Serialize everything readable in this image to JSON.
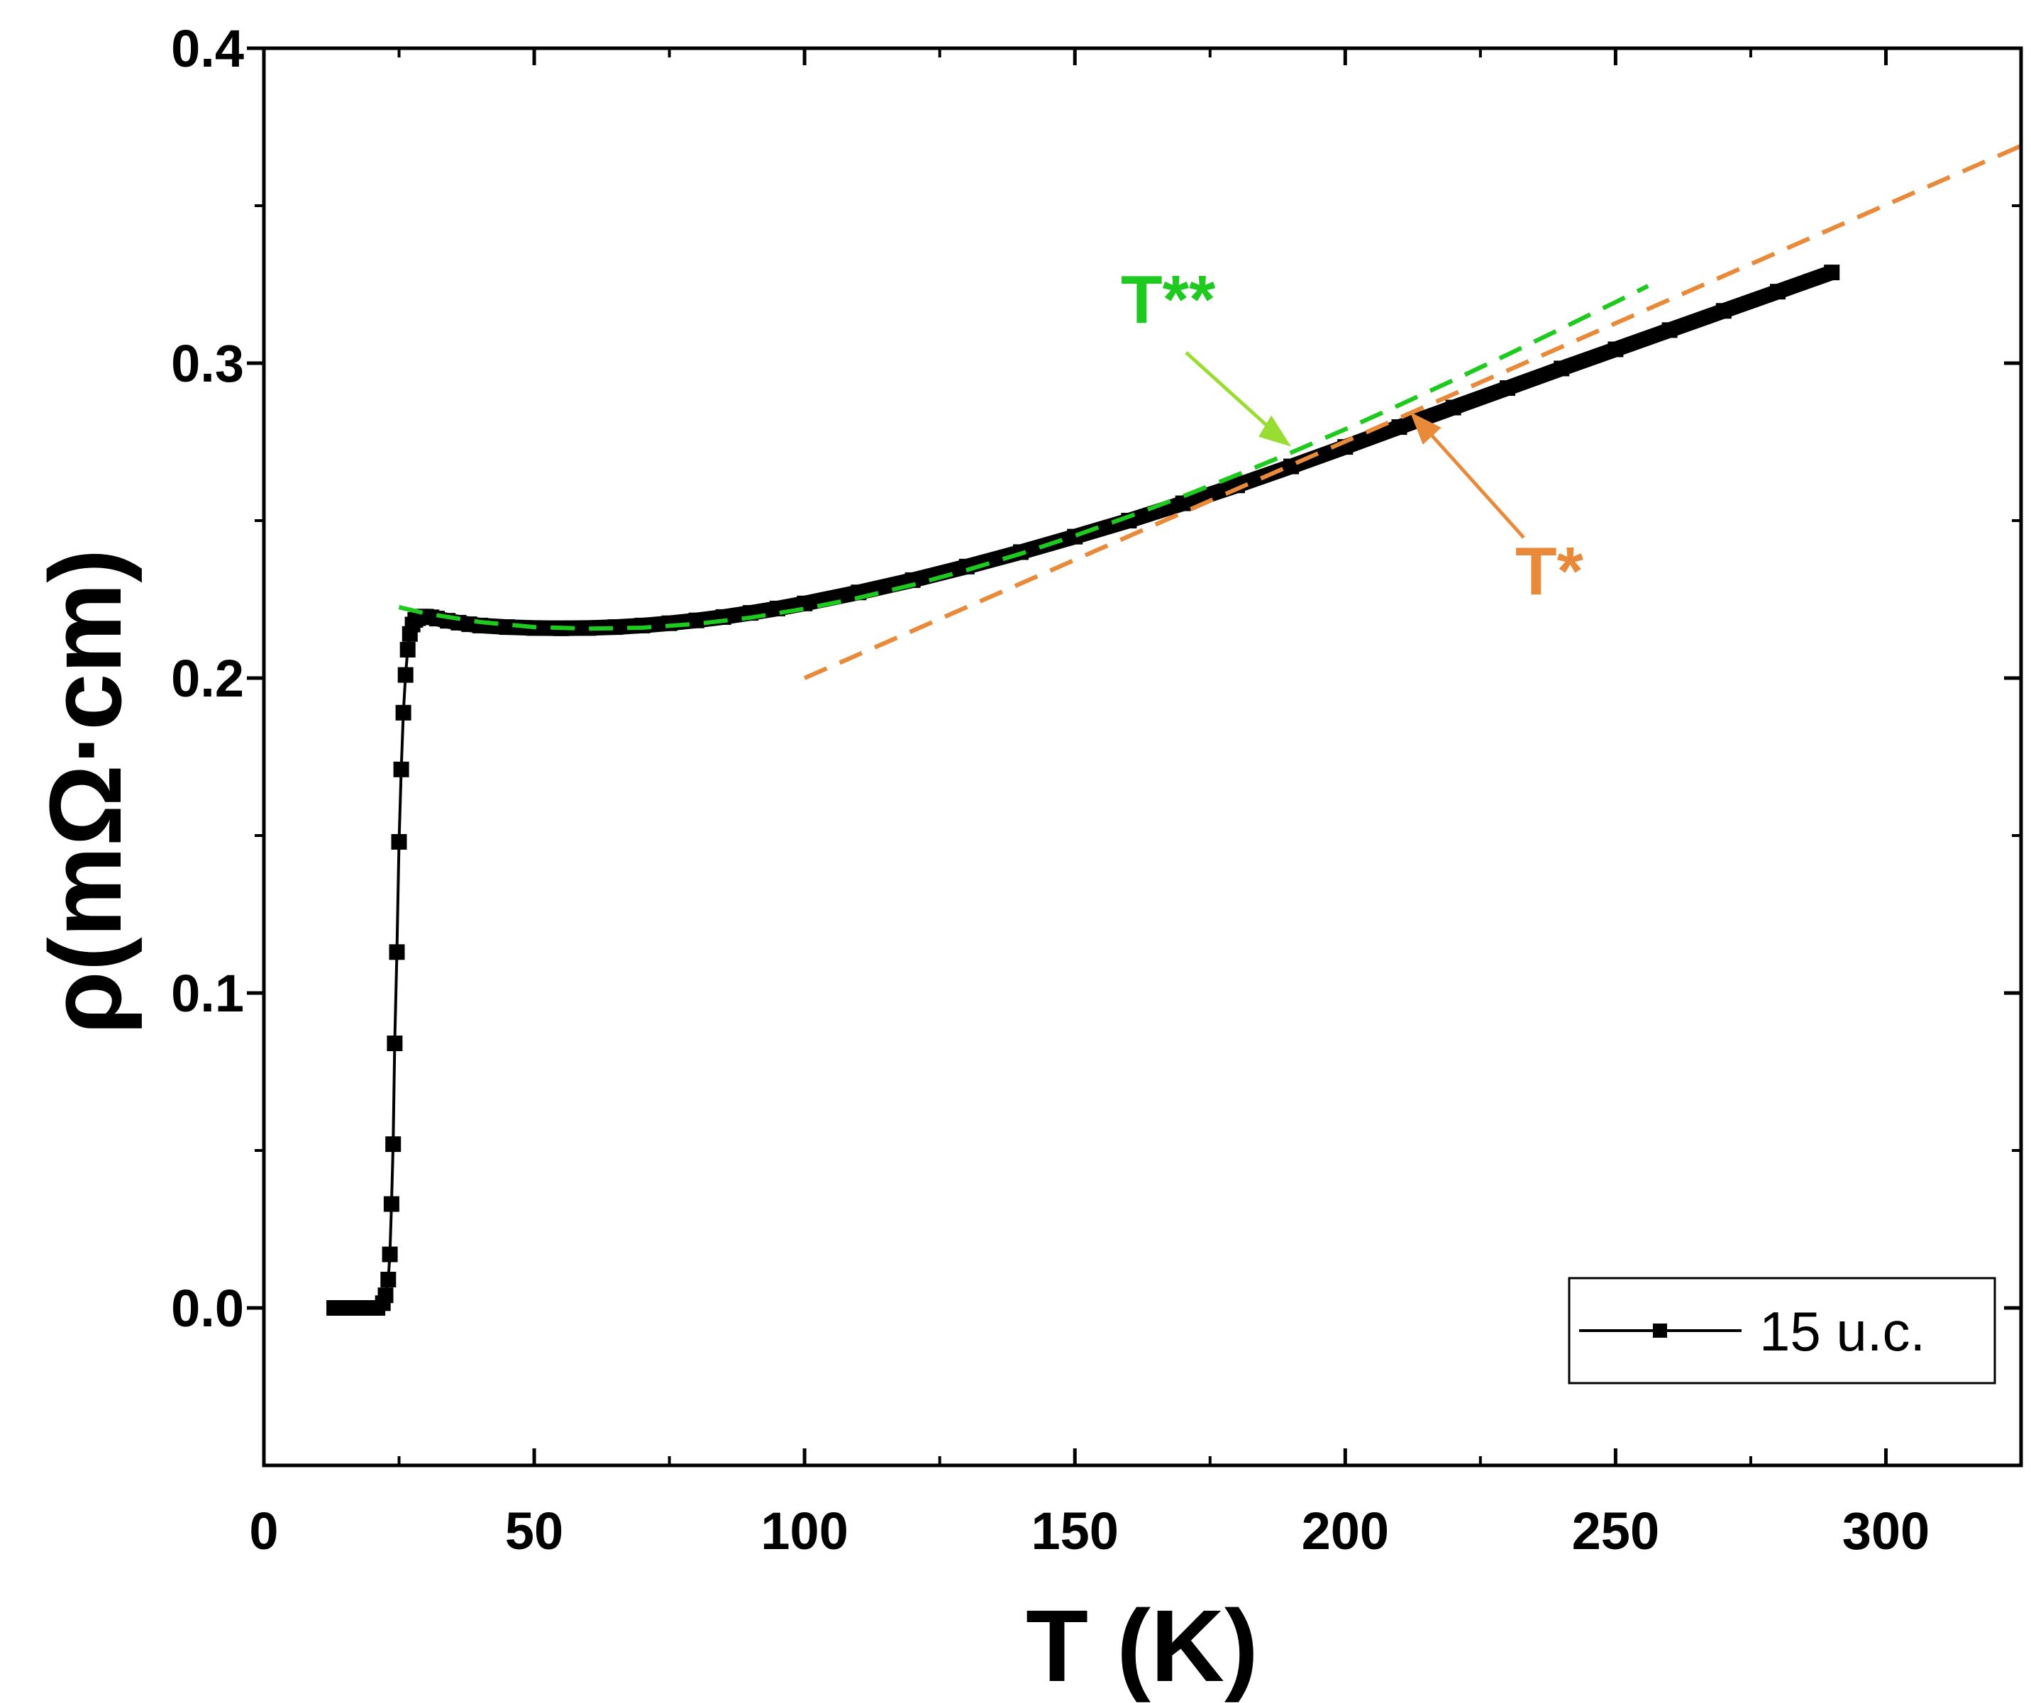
{
  "chart_data": {
    "type": "line",
    "title": "",
    "xlabel": "T (K)",
    "ylabel": "ρ(mΩ·cm)",
    "xlim": [
      0,
      325
    ],
    "ylim": [
      -0.05,
      0.4
    ],
    "x_ticks": [
      0,
      50,
      100,
      150,
      200,
      250,
      300
    ],
    "x_tick_labels": [
      "0",
      "50",
      "100",
      "150",
      "200",
      "250",
      "300"
    ],
    "y_ticks": [
      0.0,
      0.1,
      0.2,
      0.3,
      0.4
    ],
    "y_tick_labels": [
      "0.0",
      "0.1",
      "0.2",
      "0.3",
      "0.4"
    ],
    "grid": false,
    "legend": {
      "position": "bottom-right",
      "entries": [
        "15 u.c."
      ]
    },
    "series": [
      {
        "name": "15 u.c.",
        "color": "#000000",
        "marker": "square",
        "x": [
          13,
          14,
          15,
          16,
          17,
          18,
          19,
          20,
          21,
          22,
          22.5,
          23,
          23.3,
          23.6,
          23.9,
          24.2,
          24.6,
          25.0,
          25.4,
          25.8,
          26.2,
          26.6,
          27.0,
          27.5,
          28.0,
          28.5,
          29.0,
          29.5,
          30,
          31,
          32,
          34,
          36,
          38,
          40,
          45,
          50,
          55,
          60,
          65,
          70,
          75,
          80,
          85,
          90,
          95,
          100,
          110,
          120,
          130,
          140,
          150,
          160,
          170,
          180,
          190,
          200,
          210,
          220,
          230,
          240,
          250,
          260,
          270,
          280,
          290
        ],
        "values": [
          0.0,
          0.0,
          0.0,
          0.0,
          0.0,
          0.0,
          0.0,
          0.0,
          0.0,
          0.0015,
          0.004,
          0.009,
          0.017,
          0.033,
          0.052,
          0.084,
          0.113,
          0.148,
          0.171,
          0.189,
          0.201,
          0.209,
          0.214,
          0.217,
          0.2185,
          0.219,
          0.2195,
          0.2195,
          0.2195,
          0.2193,
          0.2189,
          0.2182,
          0.2176,
          0.2171,
          0.2167,
          0.2162,
          0.2159,
          0.2158,
          0.2159,
          0.2162,
          0.2167,
          0.2174,
          0.2183,
          0.2194,
          0.2207,
          0.2221,
          0.2237,
          0.2272,
          0.2311,
          0.2354,
          0.24,
          0.2449,
          0.25,
          0.2555,
          0.2612,
          0.2672,
          0.2734,
          0.2797,
          0.2859,
          0.2921,
          0.2983,
          0.3044,
          0.3105,
          0.3166,
          0.3227,
          0.3288
        ]
      }
    ],
    "fits": [
      {
        "name": "T** fit",
        "color": "#1fca1f",
        "style": "dashed",
        "x": [
          25,
          30,
          40,
          50,
          60,
          70,
          80,
          90,
          100,
          110,
          120,
          130,
          140,
          150,
          160,
          170,
          180,
          190,
          200,
          210,
          220,
          230,
          240,
          250,
          256
        ],
        "values": [
          0.2225,
          0.2205,
          0.2178,
          0.2162,
          0.2157,
          0.216,
          0.2172,
          0.2192,
          0.222,
          0.2255,
          0.2296,
          0.2343,
          0.2395,
          0.2452,
          0.2513,
          0.2577,
          0.2645,
          0.2716,
          0.279,
          0.2867,
          0.2946,
          0.3027,
          0.311,
          0.3194,
          0.3245
        ]
      },
      {
        "name": "T* fit",
        "color": "#e88a3a",
        "style": "dashed",
        "x": [
          100,
          325
        ],
        "values": [
          0.2,
          0.369
        ]
      }
    ],
    "annotations": [
      {
        "text": "T**",
        "color": "#1fca1f",
        "arrow_color": "#99dd33",
        "points_to_x": 190,
        "points_to_y": 0.2735
      },
      {
        "text": "T*",
        "color": "#e88a3a",
        "arrow_color": "#e88a3a",
        "points_to_x": 212,
        "points_to_y": 0.2845
      }
    ]
  }
}
